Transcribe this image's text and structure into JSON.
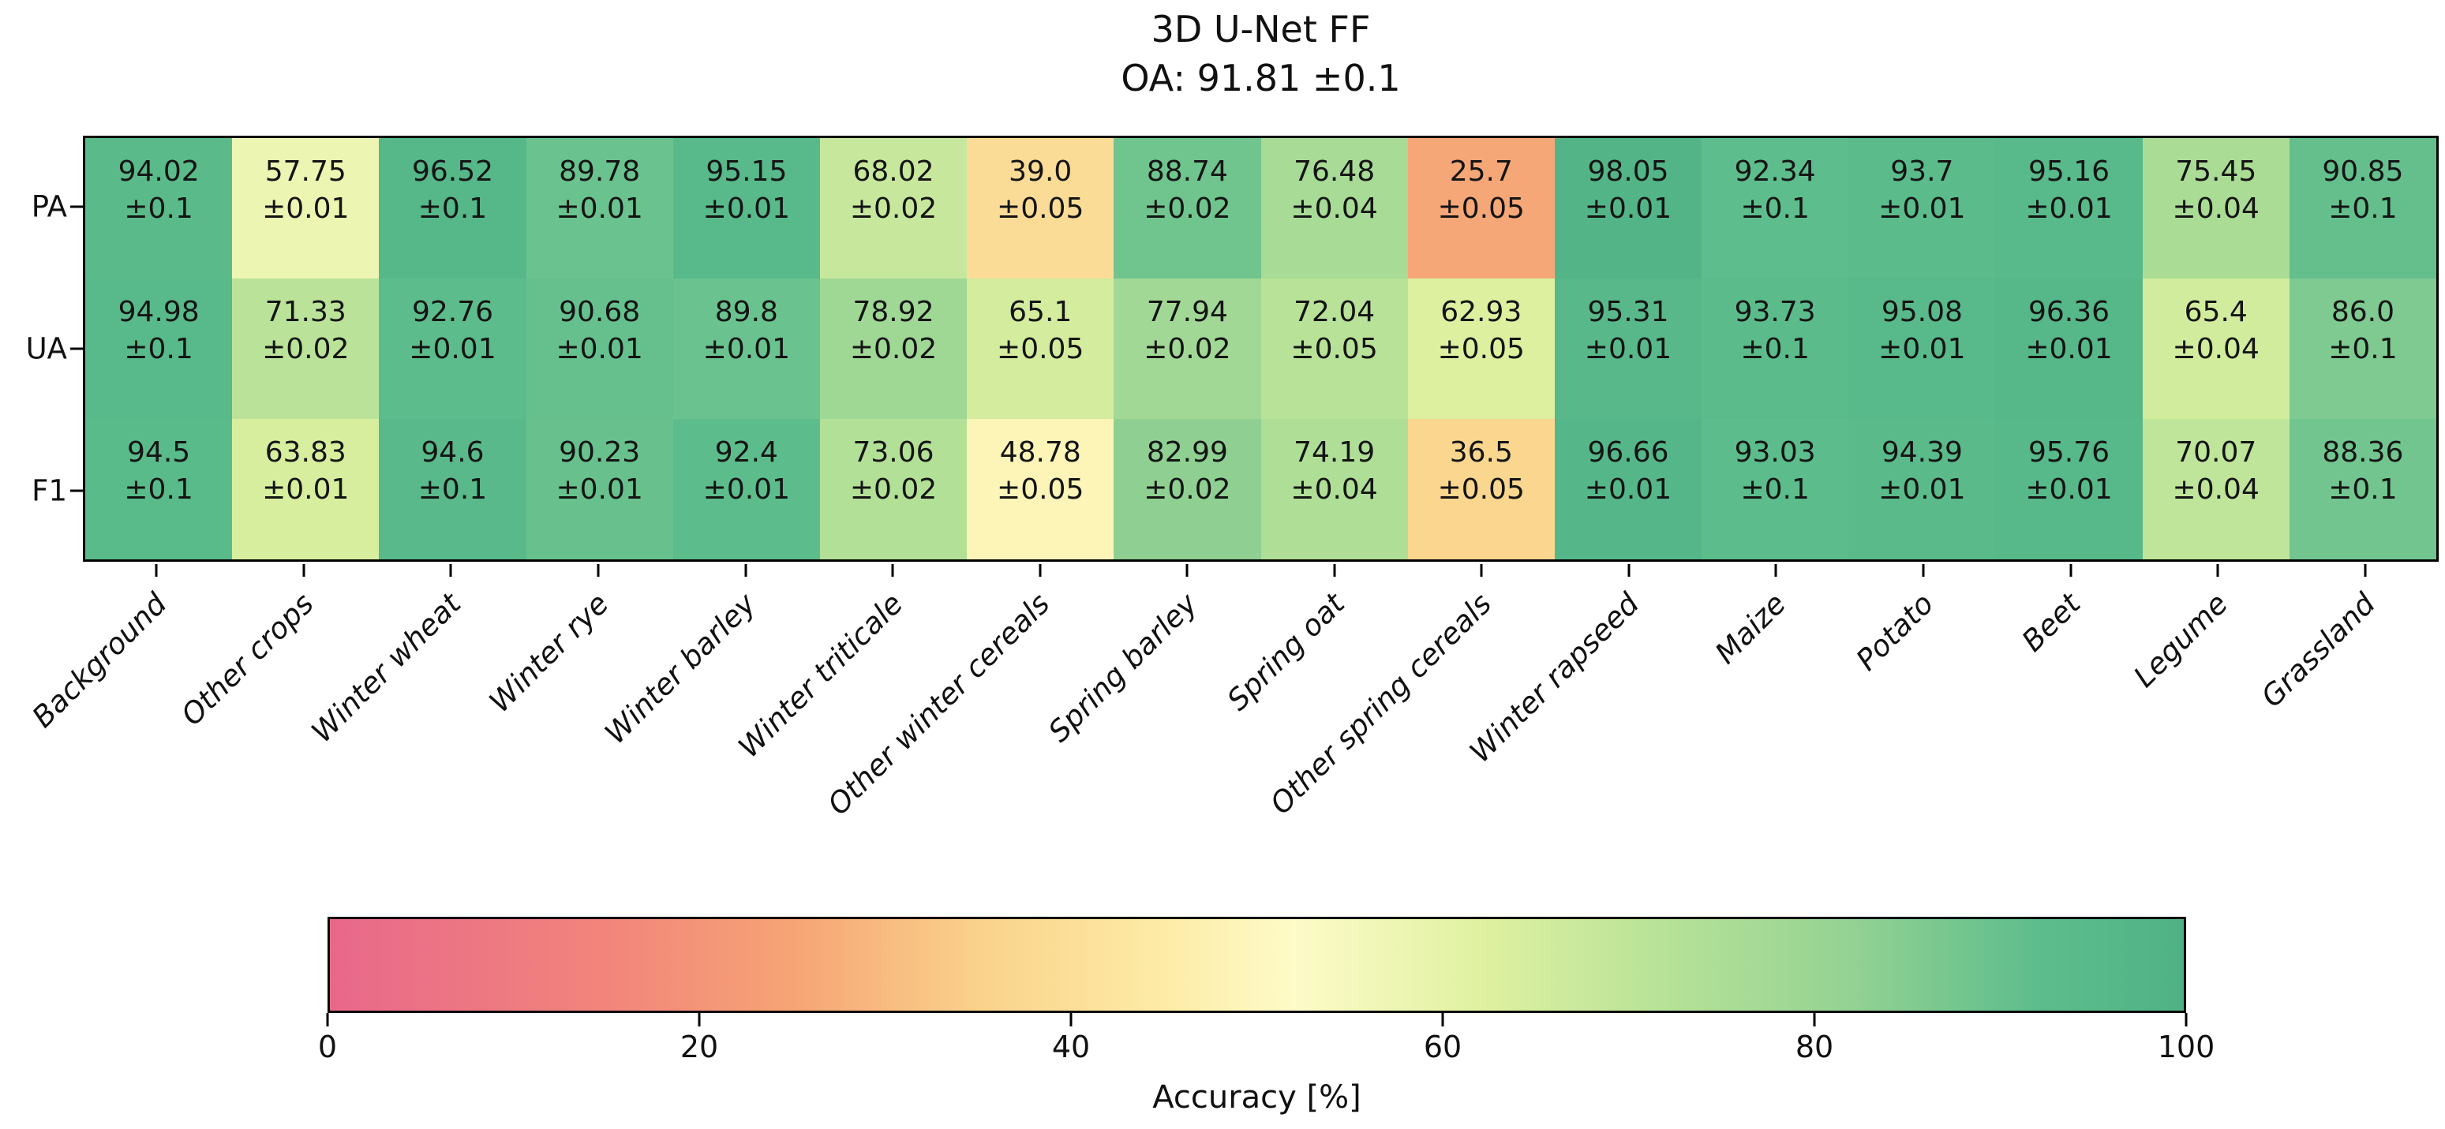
{
  "chart_data": {
    "type": "heatmap",
    "title": "3D U-Net FF",
    "subtitle": "OA: 91.81 ±0.1",
    "rows": [
      "PA",
      "UA",
      "F1"
    ],
    "categories": [
      "Background",
      "Other crops",
      "Winter wheat",
      "Winter rye",
      "Winter barley",
      "Winter triticale",
      "Other winter cereals",
      "Spring barley",
      "Spring oat",
      "Other spring cereals",
      "Winter rapseed",
      "Maize",
      "Potato",
      "Beet",
      "Legume",
      "Grassland"
    ],
    "series": [
      {
        "name": "PA",
        "values": [
          "94.02",
          "57.75",
          "96.52",
          "89.78",
          "95.15",
          "68.02",
          "39.0",
          "88.74",
          "76.48",
          "25.7",
          "98.05",
          "92.34",
          "93.7",
          "95.16",
          "75.45",
          "90.85"
        ],
        "errors": [
          "0.1",
          "0.01",
          "0.1",
          "0.01",
          "0.01",
          "0.02",
          "0.05",
          "0.02",
          "0.04",
          "0.05",
          "0.01",
          "0.1",
          "0.01",
          "0.01",
          "0.04",
          "0.1"
        ]
      },
      {
        "name": "UA",
        "values": [
          "94.98",
          "71.33",
          "92.76",
          "90.68",
          "89.8",
          "78.92",
          "65.1",
          "77.94",
          "72.04",
          "62.93",
          "95.31",
          "93.73",
          "95.08",
          "96.36",
          "65.4",
          "86.0"
        ],
        "errors": [
          "0.1",
          "0.02",
          "0.01",
          "0.01",
          "0.01",
          "0.02",
          "0.05",
          "0.02",
          "0.05",
          "0.05",
          "0.01",
          "0.1",
          "0.01",
          "0.01",
          "0.04",
          "0.1"
        ]
      },
      {
        "name": "F1",
        "values": [
          "94.5",
          "63.83",
          "94.6",
          "90.23",
          "92.4",
          "73.06",
          "48.78",
          "82.99",
          "74.19",
          "36.5",
          "96.66",
          "93.03",
          "94.39",
          "95.76",
          "70.07",
          "88.36"
        ],
        "errors": [
          "0.1",
          "0.01",
          "0.1",
          "0.01",
          "0.01",
          "0.02",
          "0.05",
          "0.02",
          "0.04",
          "0.05",
          "0.01",
          "0.1",
          "0.01",
          "0.01",
          "0.04",
          "0.1"
        ]
      }
    ],
    "plus_minus_prefix": "±",
    "colorbar": {
      "label": "Accuracy [%]",
      "range": [
        0,
        100
      ],
      "ticks": [
        "0",
        "20",
        "40",
        "60",
        "80",
        "100"
      ],
      "stops": [
        {
          "pos": 0,
          "color": "#e8688b"
        },
        {
          "pos": 15,
          "color": "#f2857b"
        },
        {
          "pos": 25,
          "color": "#f6a475"
        },
        {
          "pos": 35,
          "color": "#fad28b"
        },
        {
          "pos": 45,
          "color": "#fdeca6"
        },
        {
          "pos": 52,
          "color": "#fdfbc8"
        },
        {
          "pos": 62,
          "color": "#e0f1a1"
        },
        {
          "pos": 72,
          "color": "#b7e298"
        },
        {
          "pos": 82,
          "color": "#94d293"
        },
        {
          "pos": 92,
          "color": "#5ebd8c"
        },
        {
          "pos": 100,
          "color": "#4fb286"
        }
      ]
    }
  }
}
